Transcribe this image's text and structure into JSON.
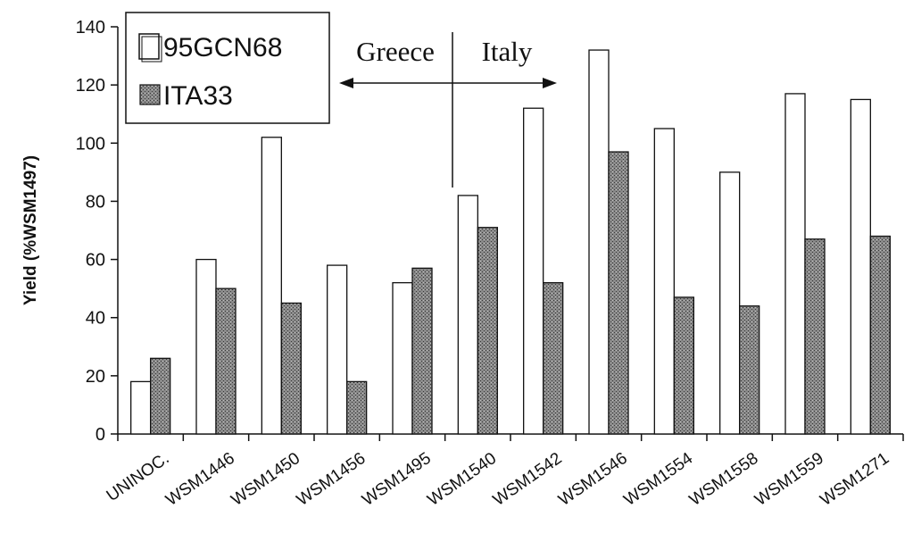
{
  "chart_data": {
    "type": "bar",
    "ylabel": "Yield (%WSM1497)",
    "xlabel": "",
    "ylim": [
      0,
      140
    ],
    "yticks": [
      0,
      20,
      40,
      60,
      80,
      100,
      120,
      140
    ],
    "categories": [
      "UNINOC.",
      "WSM1446",
      "WSM1450",
      "WSM1456",
      "WSM1495",
      "WSM1540",
      "WSM1542",
      "WSM1546",
      "WSM1554",
      "WSM1558",
      "WSM1559",
      "WSM1271"
    ],
    "series": [
      {
        "name": "95GCN68",
        "color": "#ffffff",
        "values": [
          18,
          60,
          102,
          58,
          52,
          82,
          112,
          132,
          105,
          90,
          117,
          115
        ]
      },
      {
        "name": "ITA33",
        "color": "#777777",
        "values": [
          26,
          50,
          45,
          18,
          57,
          71,
          52,
          97,
          47,
          44,
          67,
          68
        ]
      }
    ],
    "legend": {
      "position": "top-left"
    },
    "annotation": {
      "left_label": "Greece",
      "right_label": "Italy"
    },
    "grid": false
  }
}
